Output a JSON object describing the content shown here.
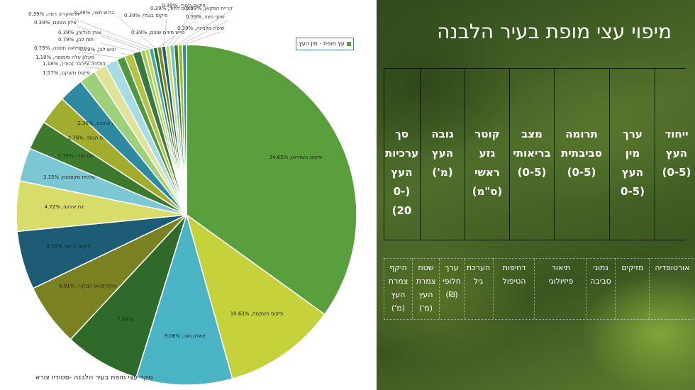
{
  "slide": {
    "title": "מיפוי עצי מופת בעיר הלבנה",
    "header_columns": [
      "ייחוד העץ (0-5)",
      "ערך מין העץ (0-5",
      "תרומה סביבתית (0-5)",
      "מצב בריאותי (0-5)",
      "קוטר גזע ראשי (ס\"מ)",
      "גובה העץ (מ')",
      "סך ערכיות העץ (0-20)"
    ],
    "sub_columns": [
      "אורטופדיה",
      "מזיקים",
      "נתוני סביבה",
      "תיאור פיזיולוגי",
      "דחיפות הטיפול",
      "הערכת גיל",
      "ערך חלופי (₪)",
      "שטח צמרת העץ (מ')",
      "היקף צמרת העץ (מ')"
    ]
  },
  "chart_caption": "סקר עצי מופת בעיר הלבנה  -סטודיו צורא",
  "chart_data": {
    "type": "pie",
    "title": "",
    "legend": {
      "entries": [
        "עץ מופת - מין העץ"
      ],
      "placement": "top-right"
    },
    "slices": [
      {
        "label": "פיקוס השדרות",
        "value": 34.65,
        "display": "34.65%",
        "color": "#5a9f3e"
      },
      {
        "label": "פיקוס השקמה",
        "value": 10.63,
        "display": "10.63%",
        "color": "#c5d23c"
      },
      {
        "label": "צאלון נאה",
        "value": 9.06,
        "display": "9.06%",
        "color": "#4ab3c4"
      },
      {
        "label": "",
        "value": 7.09,
        "display": "7.09%",
        "color": "#2f6a2a"
      },
      {
        "label": "איקליפטוס המקור",
        "value": 5.91,
        "display": "5.91%",
        "color": "#7a8120"
      },
      {
        "label": "פיקוס קדוש",
        "value": 5.51,
        "display": "5.51%",
        "color": "#1c5c74"
      },
      {
        "label": "זית אירופי",
        "value": 4.72,
        "display": "4.72%",
        "color": "#d8dc6a"
      },
      {
        "label": "שלטית מקומטת",
        "value": 3.15,
        "display": "3.15%",
        "color": "#7cc7d4"
      },
      {
        "label": "טיפוס הודי",
        "value": 2.76,
        "display": "2.76%",
        "color": "#3e7a2e"
      },
      {
        "label": "פיקוס הגומי",
        "value": 2.76,
        "display": "2.76%",
        "color": "#a0ad2e"
      },
      {
        "label": "אלביציה צהובה",
        "value": 2.36,
        "display": "2.36%",
        "color": "#2e8aa0"
      },
      {
        "label": "פיקוס מעוקם",
        "value": 1.57,
        "display": "1.57%",
        "color": "#9dd07a"
      },
      {
        "label": "בוהיניה ציירבר (הודי)",
        "value": 1.18,
        "display": "1.18%",
        "color": "#e0e39a"
      },
      {
        "label": "סיגלון עלה מימוסה",
        "value": 1.18,
        "display": "1.18%",
        "color": "#a8dbe4"
      },
      {
        "label": "גרווילאה חסונה",
        "value": 0.79,
        "display": "0.79%",
        "color": "#4e9940"
      },
      {
        "label": "יבוש לבן",
        "value": 0.79,
        "display": "0.79%",
        "color": "#b5c24a"
      },
      {
        "label": "תות לבן",
        "value": 0.79,
        "display": "0.79%",
        "color": "#3a7840"
      },
      {
        "label": "אורן הגלעין",
        "value": 0.39,
        "display": "0.39%",
        "color": "#8fcf5e"
      },
      {
        "label": "אלון השעם",
        "value": 0.39,
        "display": "0.39%",
        "color": "#c9d64a"
      },
      {
        "label": "ארואקריה רמה",
        "value": 0.39,
        "display": "0.39%",
        "color": "#3fa7b8"
      },
      {
        "label": "ברוש מצוי",
        "value": 0.39,
        "display": "0.39%",
        "color": "#2e6e2e"
      },
      {
        "label": "מייש מינים שונים",
        "value": 0.39,
        "display": "0.39%",
        "color": "#7b8a26"
      },
      {
        "label": "פיקוס בנגלי",
        "value": 0.39,
        "display": "0.39%",
        "color": "#1f5f70"
      },
      {
        "label": "פיקוס חלוד",
        "value": 0.39,
        "display": "0.39%",
        "color": "#cfd86a"
      },
      {
        "label": "פיקוס כינורי",
        "value": 0.39,
        "display": "0.39%",
        "color": "#6fc3d0"
      },
      {
        "label": "קריית הפקאן",
        "value": 0.39,
        "display": "0.39%",
        "color": "#3d7b2d"
      },
      {
        "label": "שיזף מצוי",
        "value": 0.39,
        "display": "0.39%",
        "color": "#a3b42f"
      },
      {
        "label": "שיטה מלבינה",
        "value": 0.39,
        "display": "0.39%",
        "color": "#2c8c9f"
      }
    ]
  }
}
